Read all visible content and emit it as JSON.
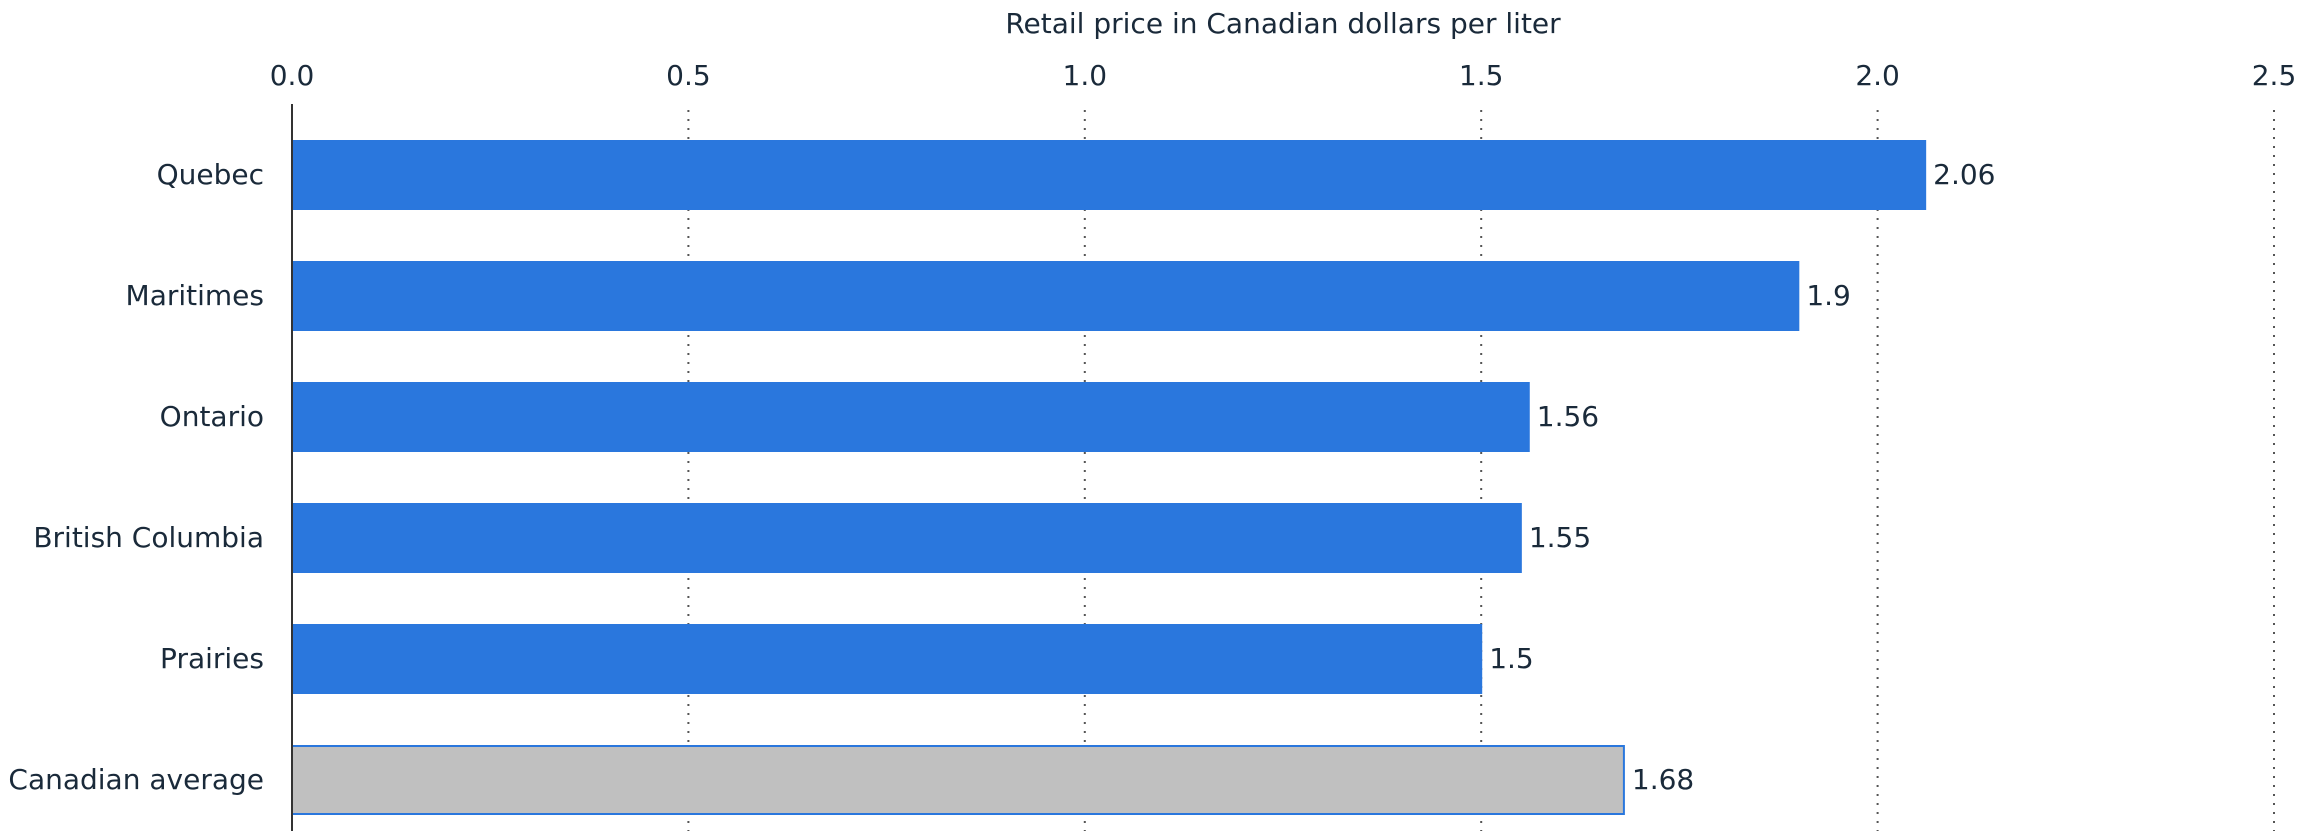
{
  "chart_data": {
    "type": "bar",
    "orientation": "horizontal",
    "x_axis_label": "Retail price in Canadian dollars per liter",
    "categories": [
      "Quebec",
      "Maritimes",
      "Ontario",
      "British Columbia",
      "Prairies",
      "Canadian average"
    ],
    "values": [
      2.06,
      1.9,
      1.56,
      1.55,
      1.5,
      1.68
    ],
    "colors": [
      "#2a77dd",
      "#2a77dd",
      "#2a77dd",
      "#2a77dd",
      "#2a77dd",
      "#c0c0c0"
    ],
    "xlim": [
      0,
      2.5
    ],
    "xticks": [
      {
        "value": 0,
        "label": "0.0"
      },
      0.5,
      {
        "value": 1,
        "label": "1.0"
      },
      1.5,
      {
        "value": 2,
        "label": "2.0"
      },
      2.5
    ],
    "grid": true
  }
}
